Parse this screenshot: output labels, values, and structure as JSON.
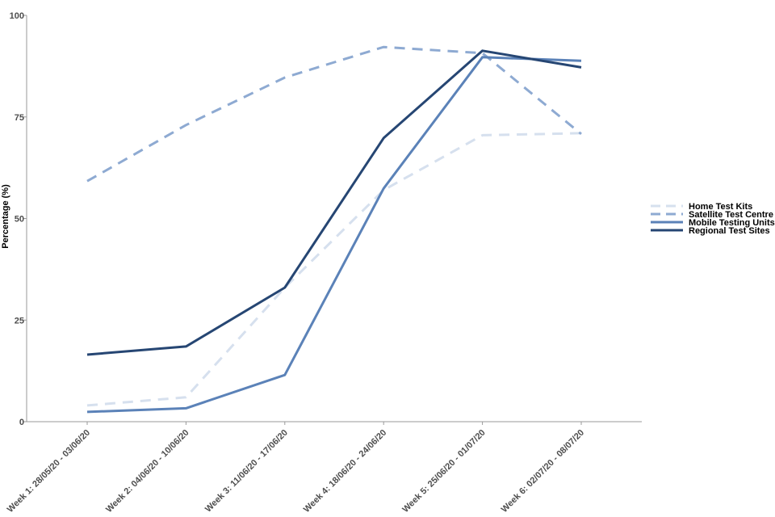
{
  "chart_data": {
    "type": "line",
    "title": "",
    "xlabel": "",
    "ylabel": "Percentage (%)",
    "ylim": [
      0,
      100
    ],
    "yticks": [
      0,
      25,
      50,
      75,
      100
    ],
    "grid": false,
    "legend_position": "right",
    "categories": [
      "Week 1: 28/05/20 - 03/06/20",
      "Week 2: 04/06/20 - 10/06/20",
      "Week 3: 11/06/20 - 17/06/20",
      "Week 4: 18/06/20 - 24/06/20",
      "Week 5: 25/06/20 - 01/07/20",
      "Week 6: 02/07/20 - 08/07/20"
    ],
    "series": [
      {
        "name": "Home Test Kits",
        "color": "#d6e0ee",
        "dashed": true,
        "values": [
          4.0,
          6.0,
          33.0,
          57.0,
          70.5,
          71.0
        ]
      },
      {
        "name": "Satellite Test Centre",
        "color": "#8eaad2",
        "dashed": true,
        "values": [
          59.2,
          73.0,
          84.7,
          92.2,
          90.7,
          70.8
        ]
      },
      {
        "name": "Mobile Testing Units",
        "color": "#5b82b8",
        "dashed": false,
        "values": [
          2.4,
          3.3,
          11.5,
          57.4,
          89.7,
          88.8
        ]
      },
      {
        "name": "Regional Test Sites",
        "color": "#264673",
        "dashed": false,
        "values": [
          16.5,
          18.5,
          33.0,
          69.8,
          91.3,
          87.2
        ]
      }
    ]
  }
}
